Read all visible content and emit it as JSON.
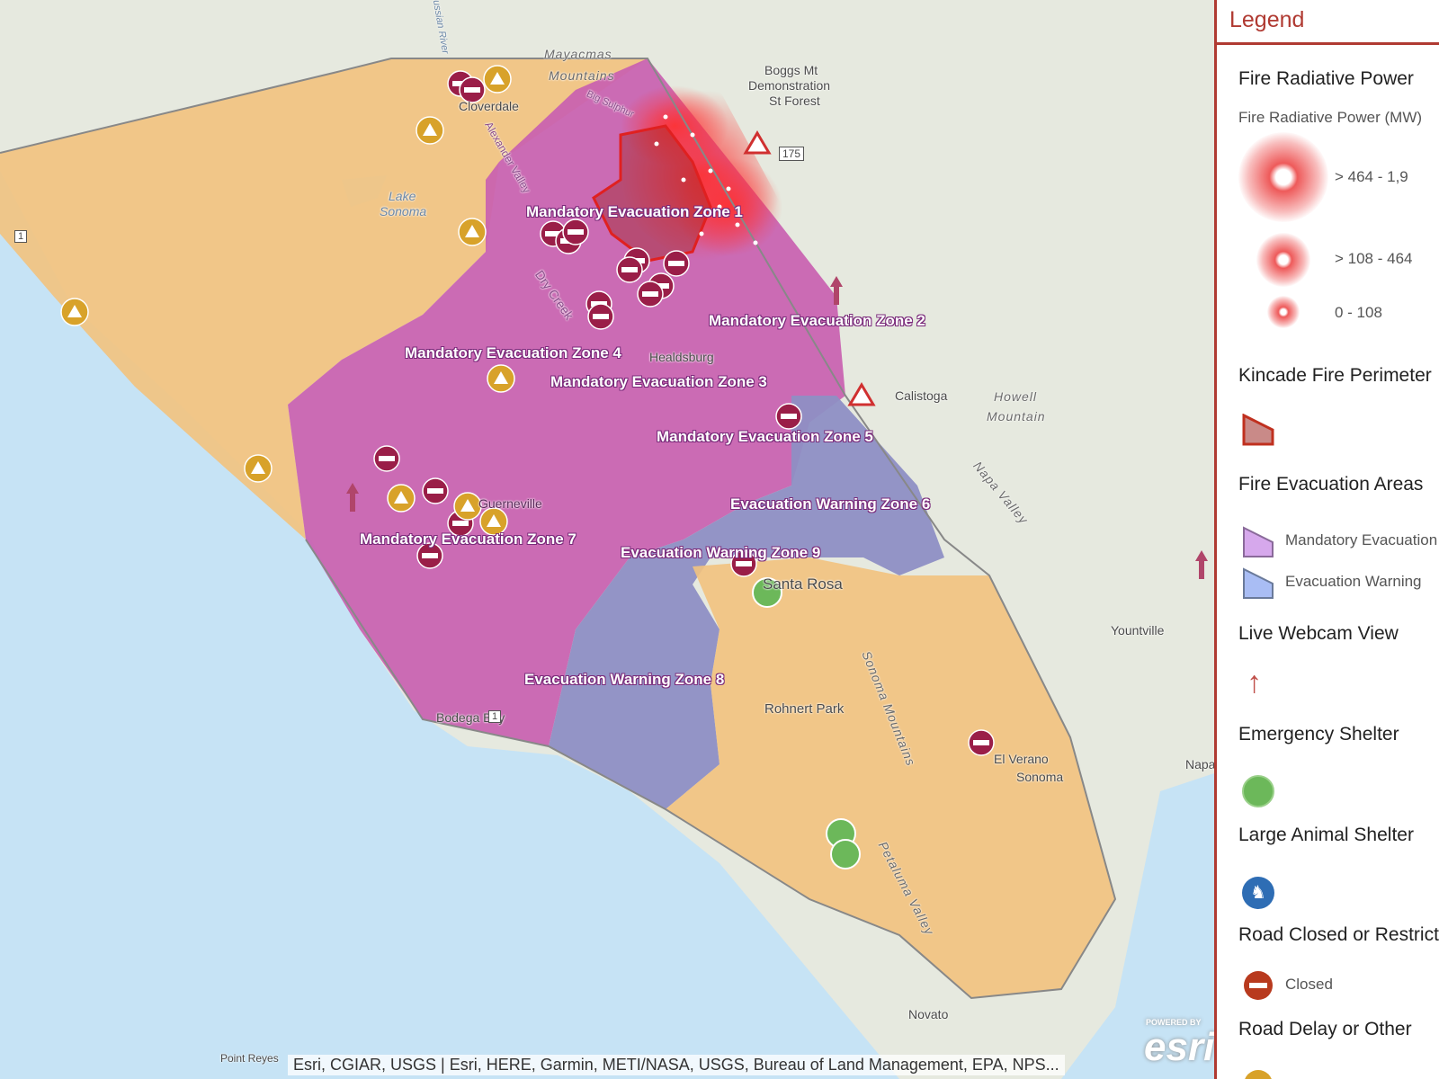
{
  "map": {
    "places": [
      "Cloverdale",
      "Mayacmas",
      "Mountains",
      "Boggs Mt",
      "Demonstration",
      "St Forest",
      "Lake",
      "Sonoma",
      "Healdsburg",
      "Dry Creek",
      "Calistoga",
      "Howell",
      "Mountain",
      "Napa Valley",
      "Guerneville",
      "Santa Rosa",
      "Yountville",
      "Rohnert Park",
      "Sonoma Mountains",
      "El Verano",
      "Sonoma",
      "Bodega Bay",
      "Petaluma Valley",
      "Novato",
      "Napa",
      "Point Reyes",
      "Russian River",
      "Alexander Valley",
      "Big Sulphur"
    ],
    "route_shields": [
      "175",
      "1",
      "1"
    ],
    "zones": [
      "Mandatory Evacuation Zone 1",
      "Mandatory Evacuation Zone 2",
      "Mandatory Evacuation Zone 3",
      "Mandatory Evacuation Zone 4",
      "Mandatory Evacuation Zone 5",
      "Evacuation Warning Zone 6",
      "Mandatory Evacuation Zone 7",
      "Evacuation Warning Zone 8",
      "Evacuation Warning Zone 9"
    ],
    "attribution": "Esri, CGIAR, USGS | Esri, HERE, Garmin, METI/NASA, USGS, Bureau of Land Management, EPA, NPS...",
    "logo": "esri",
    "logo_caption": "POWERED BY"
  },
  "colors": {
    "mandatory": "#c95fb0",
    "warning": "#8e8fc4",
    "advisory": "#f2c27e",
    "fire": "#e02020",
    "ocean": "#c6e3f5",
    "accent": "#b03a32",
    "shelter": "#6cb85a",
    "animal": "#2e6db4",
    "closed": "#b83a1e",
    "delay": "#d8a22a"
  },
  "legend": {
    "title": "Legend",
    "frp_title": "Fire Radiative Power",
    "frp_sub": "Fire Radiative Power (MW)",
    "frp_classes": [
      "> 464 - 1,9",
      "> 108 - 464",
      "0 - 108"
    ],
    "perimeter_title": "Kincade Fire Perimeter",
    "evac_title": "Fire Evacuation Areas",
    "evac_items": [
      "Mandatory Evacuation",
      "Evacuation Warning"
    ],
    "webcam_title": "Live Webcam View",
    "shelter_title": "Emergency Shelter",
    "animal_title": "Large Animal Shelter",
    "closed_title": "Road Closed or Restricted",
    "closed_item": "Closed",
    "delay_title": "Road Delay or Other"
  }
}
